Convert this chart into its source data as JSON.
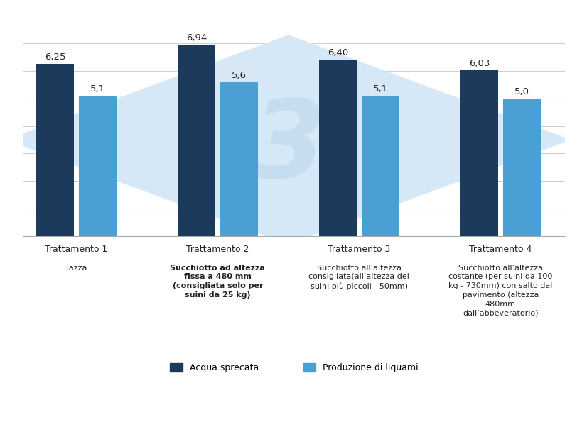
{
  "groups": [
    "Trattamento 1",
    "Trattamento 2",
    "Trattamento 3",
    "Trattamento 4"
  ],
  "sublabels": [
    "Tazza",
    "Succhiotto ad altezza\nfissa a 480 mm\n(consigliata solo per\nsuini da 25 kg)",
    "Succhiotto all’altezza\nconsigliata(all’altezza dei\nsuini più piccoli - 50mm)",
    "Succhiotto all’altezza\ncostante (per suini da 100\nkg - 730mm) con salto dal\npavimento (altezza\n480mm\ndall’abbeveratorio)"
  ],
  "sublabel_bold": [
    false,
    true,
    false,
    false
  ],
  "acqua_values": [
    6.25,
    6.94,
    6.4,
    6.03
  ],
  "liquami_values": [
    5.1,
    5.6,
    5.1,
    5.0
  ],
  "acqua_color": "#1b3a5c",
  "liquami_color": "#4a9fd4",
  "bar_width": 0.32,
  "ylim_max": 7.8,
  "yticks": [
    0,
    1,
    2,
    3,
    4,
    5,
    6,
    7
  ],
  "legend_acqua": "Acqua sprecata",
  "legend_liquami": "Produzione di liquami",
  "background_color": "#ffffff",
  "grid_color": "#d0d0d0",
  "value_fontsize": 9.5,
  "label_fontsize": 9,
  "sublabel_fontsize": 8,
  "legend_fontsize": 9,
  "watermark_diamond_color": "#d6e8f5",
  "watermark_text_color": "#c5dcef",
  "watermark_letter": "3"
}
